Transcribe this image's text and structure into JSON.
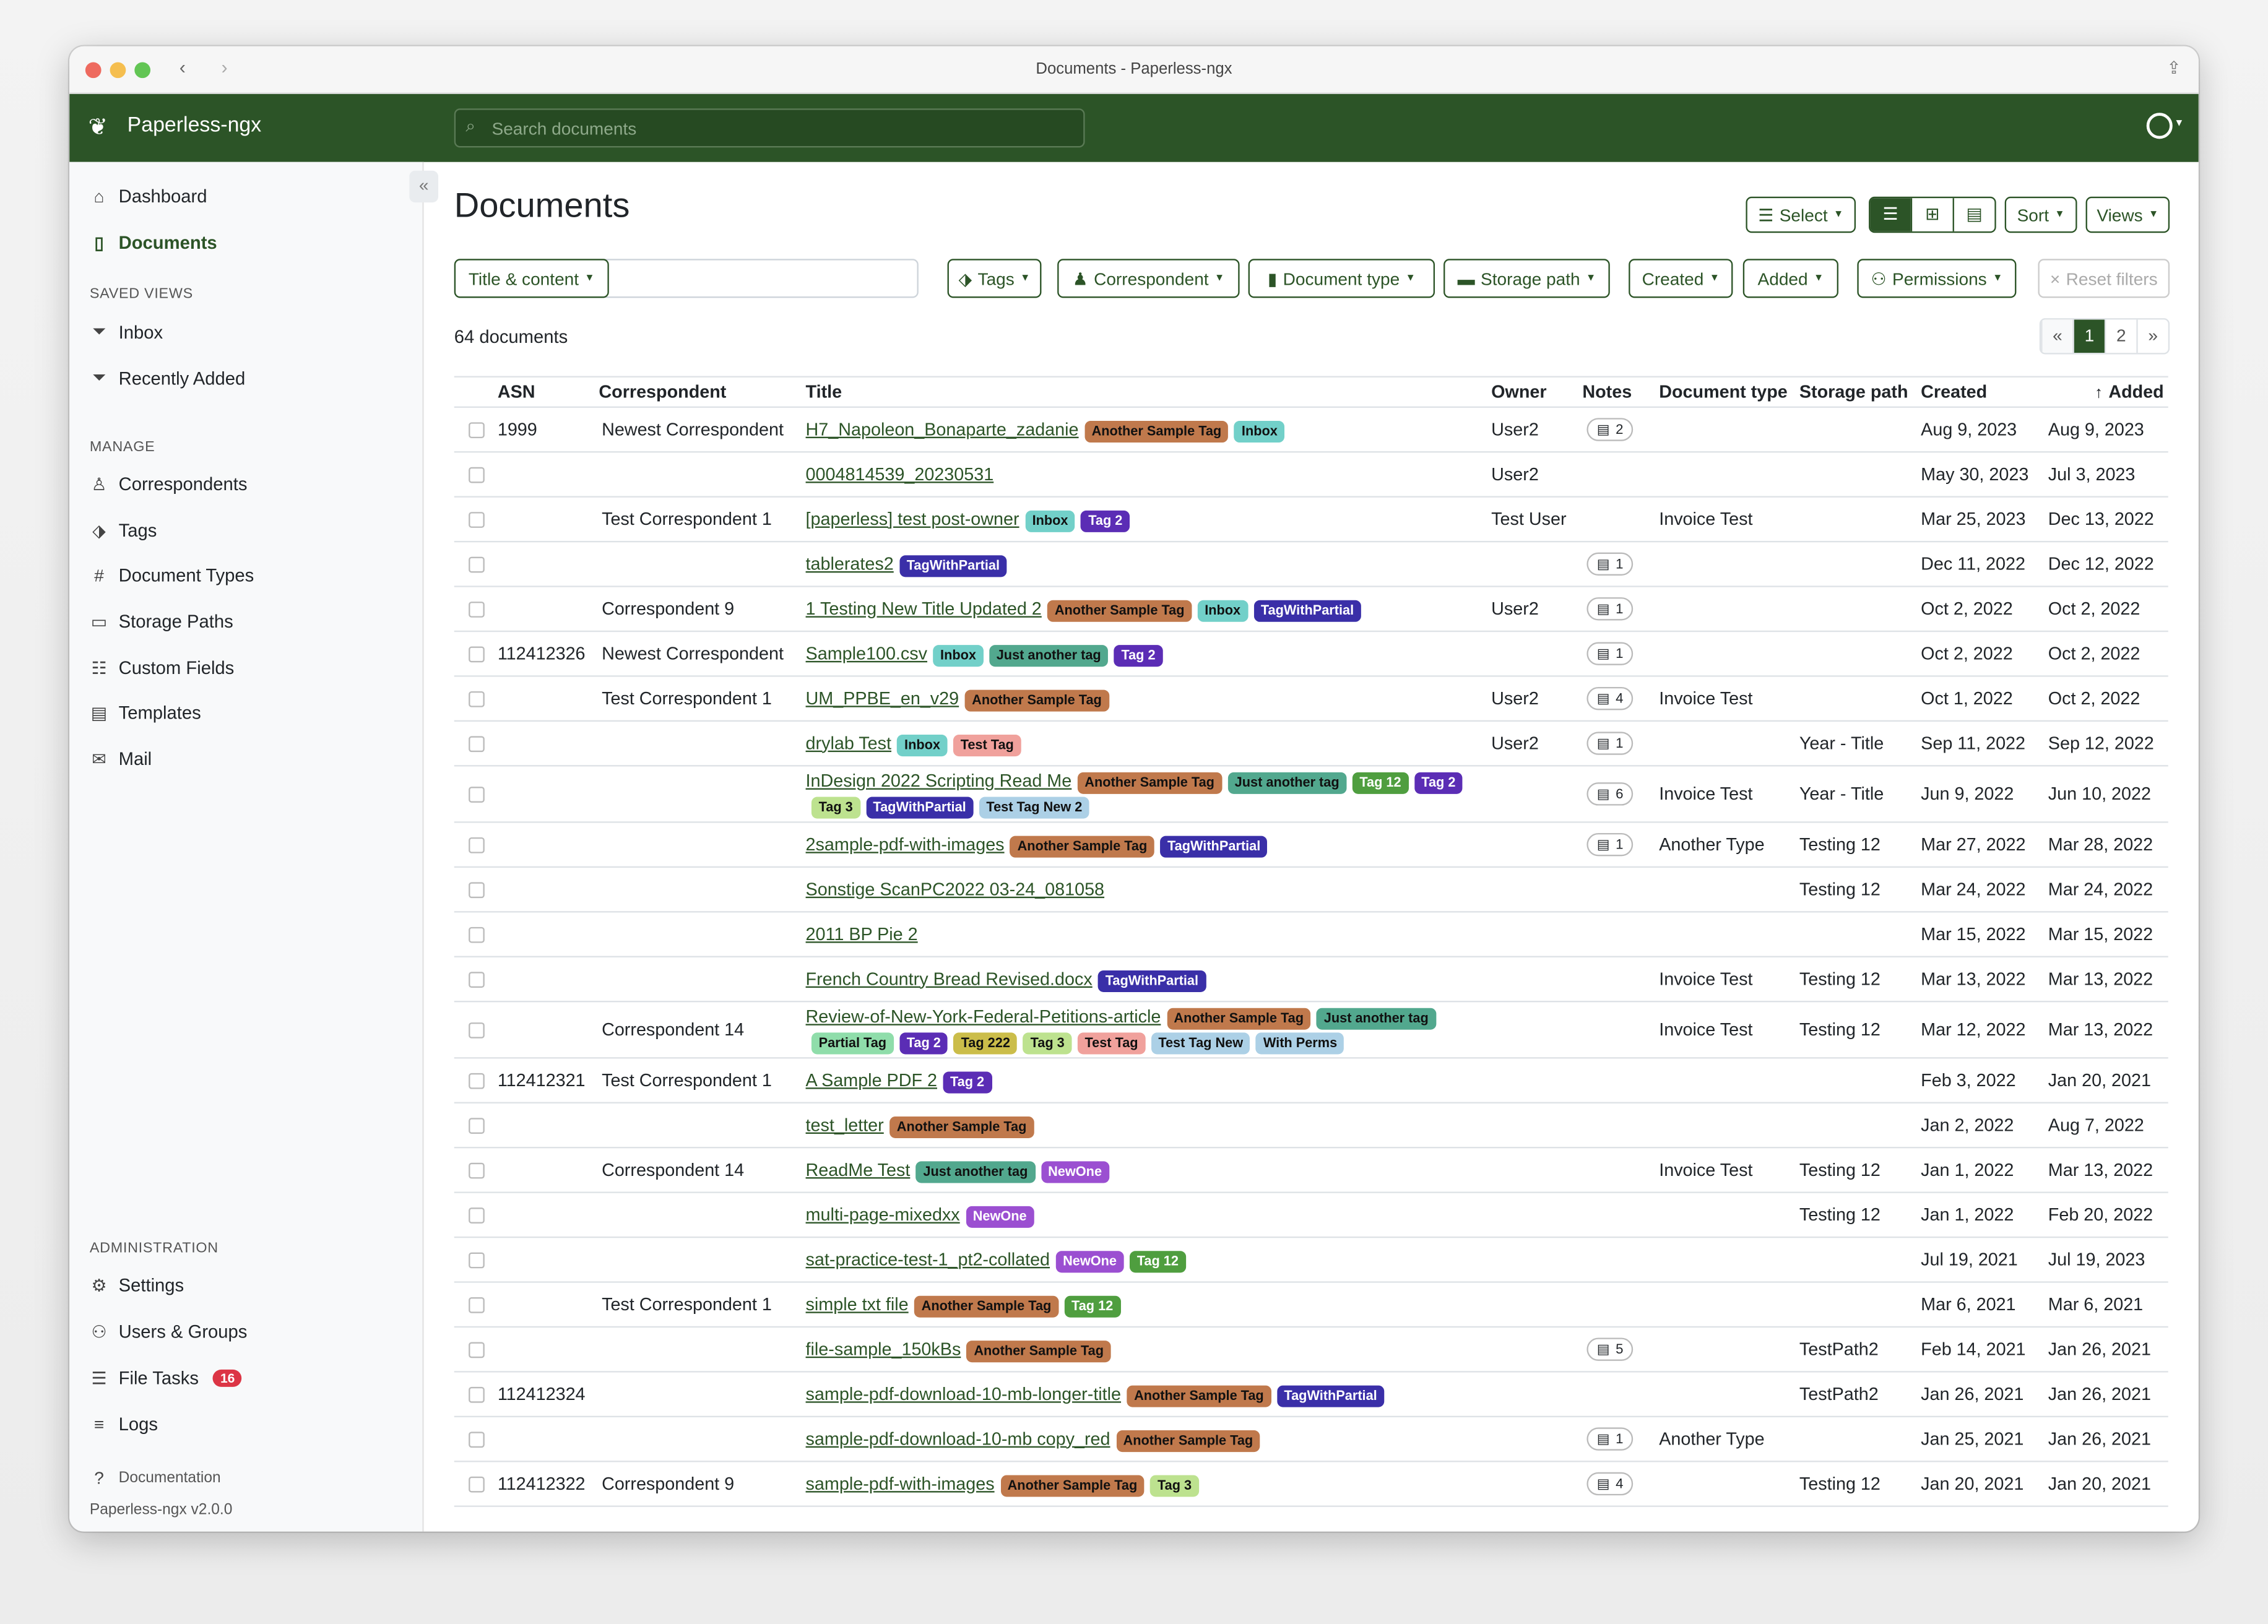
{
  "window": {
    "title": "Documents - Paperless-ngx"
  },
  "navbar": {
    "brand": "Paperless-ngx",
    "search_placeholder": "Search documents"
  },
  "sidebar": {
    "main": [
      {
        "label": "Dashboard",
        "icon": "house-icon"
      },
      {
        "label": "Documents",
        "icon": "file-icon",
        "active": true
      }
    ],
    "saved_views_heading": "SAVED VIEWS",
    "saved_views": [
      {
        "label": "Inbox",
        "icon": "funnel-icon"
      },
      {
        "label": "Recently Added",
        "icon": "funnel-icon"
      }
    ],
    "manage_heading": "MANAGE",
    "manage": [
      {
        "label": "Correspondents",
        "icon": "person-icon"
      },
      {
        "label": "Tags",
        "icon": "tag-icon"
      },
      {
        "label": "Document Types",
        "icon": "hash-icon"
      },
      {
        "label": "Storage Paths",
        "icon": "folder-icon"
      },
      {
        "label": "Custom Fields",
        "icon": "ui-checks-icon"
      },
      {
        "label": "Templates",
        "icon": "file-template-icon"
      },
      {
        "label": "Mail",
        "icon": "envelope-icon"
      }
    ],
    "admin_heading": "ADMINISTRATION",
    "admin": [
      {
        "label": "Settings",
        "icon": "gear-icon"
      },
      {
        "label": "Users & Groups",
        "icon": "people-icon"
      },
      {
        "label": "File Tasks",
        "icon": "list-icon",
        "badge": "16"
      },
      {
        "label": "Logs",
        "icon": "text-icon"
      }
    ],
    "documentation": "Documentation",
    "version": "Paperless-ngx v2.0.0"
  },
  "page": {
    "title": "Documents",
    "select": "Select",
    "sort": "Sort",
    "views": "Views",
    "count": "64 documents",
    "filters": {
      "title_content": "Title & content",
      "tags": "Tags",
      "correspondent": "Correspondent",
      "document_type": "Document type",
      "storage_path": "Storage path",
      "created": "Created",
      "added": "Added",
      "permissions": "Permissions",
      "reset": "Reset filters"
    },
    "pagination": {
      "prev": "«",
      "pages": [
        "1",
        "2"
      ],
      "current": "1",
      "next": "»"
    }
  },
  "colors": {
    "accent": "#2c5427",
    "badge_danger": "#dc3545"
  },
  "tag_colors": {
    "Another Sample Tag": [
      "#c0794c",
      "#111"
    ],
    "Inbox": [
      "#72d0c9",
      "#111"
    ],
    "Tag 2": [
      "#5b2db5",
      "#fff"
    ],
    "TagWithPartial": [
      "#3a2fa8",
      "#fff"
    ],
    "Just another tag": [
      "#52a88e",
      "#111"
    ],
    "Test Tag": [
      "#f0a19c",
      "#111"
    ],
    "Tag 12": [
      "#4f9e3f",
      "#fff"
    ],
    "Tag 3": [
      "#bde28f",
      "#111"
    ],
    "Test Tag New": [
      "#acd0e6",
      "#111"
    ],
    "Partial Tag": [
      "#8fddaa",
      "#111"
    ],
    "Tag 222": [
      "#cbbd4a",
      "#111"
    ],
    "With Perms": [
      "#acd0e6",
      "#111"
    ],
    "NewOne": [
      "#9b4fd1",
      "#fff"
    ]
  },
  "table": {
    "columns": [
      "ASN",
      "Correspondent",
      "Title",
      "Owner",
      "Notes",
      "Document type",
      "Storage path",
      "Created",
      "Added"
    ],
    "rows": [
      {
        "asn": "1999",
        "corr": "Newest Correspondent",
        "title": "H7_Napoleon_Bonaparte_zadanie",
        "tags": [
          "Another Sample Tag",
          "Inbox"
        ],
        "owner": "User2",
        "notes": "2",
        "type": "",
        "path": "",
        "created": "Aug 9, 2023",
        "added": "Aug 9, 2023"
      },
      {
        "asn": "",
        "corr": "",
        "title": "0004814539_20230531",
        "tags": [],
        "owner": "User2",
        "notes": "",
        "type": "",
        "path": "",
        "created": "May 30, 2023",
        "added": "Jul 3, 2023"
      },
      {
        "asn": "",
        "corr": "Test Correspondent 1",
        "title": "[paperless] test post-owner",
        "tags": [
          "Inbox",
          "Tag 2"
        ],
        "owner": "Test User",
        "notes": "",
        "type": "Invoice Test",
        "path": "",
        "created": "Mar 25, 2023",
        "added": "Dec 13, 2022"
      },
      {
        "asn": "",
        "corr": "",
        "title": "tablerates2",
        "tags": [
          "TagWithPartial"
        ],
        "owner": "",
        "notes": "1",
        "type": "",
        "path": "",
        "created": "Dec 11, 2022",
        "added": "Dec 12, 2022"
      },
      {
        "asn": "",
        "corr": "Correspondent 9",
        "title": "1 Testing New Title Updated 2",
        "tags": [
          "Another Sample Tag",
          "Inbox",
          "TagWithPartial"
        ],
        "owner": "User2",
        "notes": "1",
        "type": "",
        "path": "",
        "created": "Oct 2, 2022",
        "added": "Oct 2, 2022"
      },
      {
        "asn": "112412326",
        "corr": "Newest Correspondent",
        "title": "Sample100.csv",
        "tags": [
          "Inbox",
          "Just another tag",
          "Tag 2"
        ],
        "owner": "",
        "notes": "1",
        "type": "",
        "path": "",
        "created": "Oct 2, 2022",
        "added": "Oct 2, 2022"
      },
      {
        "asn": "",
        "corr": "Test Correspondent 1",
        "title": "UM_PPBE_en_v29",
        "tags": [
          "Another Sample Tag"
        ],
        "owner": "User2",
        "notes": "4",
        "type": "Invoice Test",
        "path": "",
        "created": "Oct 1, 2022",
        "added": "Oct 2, 2022"
      },
      {
        "asn": "",
        "corr": "",
        "title": "drylab Test",
        "tags": [
          "Inbox",
          "Test Tag"
        ],
        "owner": "User2",
        "notes": "1",
        "type": "",
        "path": "Year - Title",
        "created": "Sep 11, 2022",
        "added": "Sep 12, 2022"
      },
      {
        "asn": "",
        "corr": "",
        "title": "InDesign 2022 Scripting Read Me",
        "tags": [
          "Another Sample Tag",
          "Just another tag",
          "Tag 12",
          "Tag 2",
          "Tag 3",
          "TagWithPartial",
          "Test Tag New 2"
        ],
        "owner": "",
        "notes": "6",
        "type": "Invoice Test",
        "path": "Year - Title",
        "created": "Jun 9, 2022",
        "added": "Jun 10, 2022"
      },
      {
        "asn": "",
        "corr": "",
        "title": "2sample-pdf-with-images",
        "tags": [
          "Another Sample Tag",
          "TagWithPartial"
        ],
        "owner": "",
        "notes": "1",
        "type": "Another Type",
        "path": "Testing 12",
        "created": "Mar 27, 2022",
        "added": "Mar 28, 2022"
      },
      {
        "asn": "",
        "corr": "",
        "title": "Sonstige ScanPC2022 03-24_081058",
        "tags": [],
        "owner": "",
        "notes": "",
        "type": "",
        "path": "Testing 12",
        "created": "Mar 24, 2022",
        "added": "Mar 24, 2022"
      },
      {
        "asn": "",
        "corr": "",
        "title": "2011 BP Pie 2",
        "tags": [],
        "owner": "",
        "notes": "",
        "type": "",
        "path": "",
        "created": "Mar 15, 2022",
        "added": "Mar 15, 2022"
      },
      {
        "asn": "",
        "corr": "",
        "title": "French Country Bread Revised.docx",
        "tags": [
          "TagWithPartial"
        ],
        "owner": "",
        "notes": "",
        "type": "Invoice Test",
        "path": "Testing 12",
        "created": "Mar 13, 2022",
        "added": "Mar 13, 2022"
      },
      {
        "asn": "",
        "corr": "Correspondent 14",
        "title": "Review-of-New-York-Federal-Petitions-article",
        "tags": [
          "Another Sample Tag",
          "Just another tag",
          "Partial Tag",
          "Tag 2",
          "Tag 222",
          "Tag 3",
          "Test Tag",
          "Test Tag New",
          "With Perms"
        ],
        "owner": "",
        "notes": "",
        "type": "Invoice Test",
        "path": "Testing 12",
        "created": "Mar 12, 2022",
        "added": "Mar 13, 2022"
      },
      {
        "asn": "112412321",
        "corr": "Test Correspondent 1",
        "title": "A Sample PDF 2",
        "tags": [
          "Tag 2"
        ],
        "owner": "",
        "notes": "",
        "type": "",
        "path": "",
        "created": "Feb 3, 2022",
        "added": "Jan 20, 2021"
      },
      {
        "asn": "",
        "corr": "",
        "title": "test_letter",
        "tags": [
          "Another Sample Tag"
        ],
        "owner": "",
        "notes": "",
        "type": "",
        "path": "",
        "created": "Jan 2, 2022",
        "added": "Aug 7, 2022"
      },
      {
        "asn": "",
        "corr": "Correspondent 14",
        "title": "ReadMe Test",
        "tags": [
          "Just another tag",
          "NewOne"
        ],
        "owner": "",
        "notes": "",
        "type": "Invoice Test",
        "path": "Testing 12",
        "created": "Jan 1, 2022",
        "added": "Mar 13, 2022"
      },
      {
        "asn": "",
        "corr": "",
        "title": "multi-page-mixedxx",
        "tags": [
          "NewOne"
        ],
        "owner": "",
        "notes": "",
        "type": "",
        "path": "Testing 12",
        "created": "Jan 1, 2022",
        "added": "Feb 20, 2022"
      },
      {
        "asn": "",
        "corr": "",
        "title": "sat-practice-test-1_pt2-collated",
        "tags": [
          "NewOne",
          "Tag 12"
        ],
        "owner": "",
        "notes": "",
        "type": "",
        "path": "",
        "created": "Jul 19, 2021",
        "added": "Jul 19, 2023"
      },
      {
        "asn": "",
        "corr": "Test Correspondent 1",
        "title": "simple txt file",
        "tags": [
          "Another Sample Tag",
          "Tag 12"
        ],
        "owner": "",
        "notes": "",
        "type": "",
        "path": "",
        "created": "Mar 6, 2021",
        "added": "Mar 6, 2021"
      },
      {
        "asn": "",
        "corr": "",
        "title": "file-sample_150kBs",
        "tags": [
          "Another Sample Tag"
        ],
        "owner": "",
        "notes": "5",
        "type": "",
        "path": "TestPath2",
        "created": "Feb 14, 2021",
        "added": "Jan 26, 2021"
      },
      {
        "asn": "112412324",
        "corr": "",
        "title": "sample-pdf-download-10-mb-longer-title",
        "tags": [
          "Another Sample Tag",
          "TagWithPartial"
        ],
        "owner": "",
        "notes": "",
        "type": "",
        "path": "TestPath2",
        "created": "Jan 26, 2021",
        "added": "Jan 26, 2021"
      },
      {
        "asn": "",
        "corr": "",
        "title": "sample-pdf-download-10-mb copy_red",
        "tags": [
          "Another Sample Tag"
        ],
        "owner": "",
        "notes": "1",
        "type": "Another Type",
        "path": "",
        "created": "Jan 25, 2021",
        "added": "Jan 26, 2021"
      },
      {
        "asn": "112412322",
        "corr": "Correspondent 9",
        "title": "sample-pdf-with-images",
        "tags": [
          "Another Sample Tag",
          "Tag 3"
        ],
        "owner": "",
        "notes": "4",
        "type": "",
        "path": "Testing 12",
        "created": "Jan 20, 2021",
        "added": "Jan 20, 2021"
      }
    ]
  }
}
